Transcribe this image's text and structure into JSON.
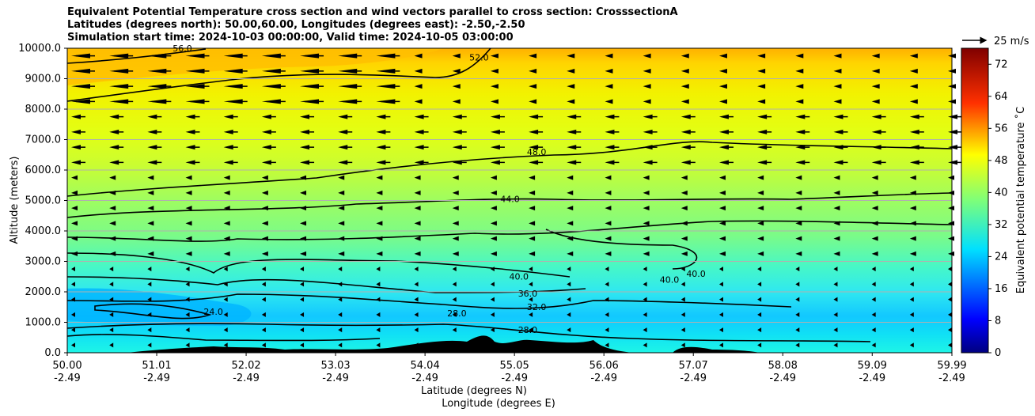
{
  "chart_data": {
    "type": "contourf",
    "title_lines": [
      "Equivalent Potential Temperature cross section and wind vectors parallel to cross section: CrosssectionA",
      "Latitudes (degrees north): 50.00,60.00, Longitudes (degrees east): -2.50,-2.50",
      "Simulation start time: 2024-10-03 00:00:00, Valid time: 2024-10-05 03:00:00"
    ],
    "ylabel": "Altitude (meters)",
    "xlabel_lat": "Latitude (degrees N)",
    "xlabel_lon": "Longitude (degrees E)",
    "xlim": [
      50.0,
      59.99
    ],
    "ylim": [
      0,
      10000
    ],
    "xticks": [
      {
        "lat": "50.00",
        "lon": "-2.49",
        "v": 50.0
      },
      {
        "lat": "51.01",
        "lon": "-2.49",
        "v": 51.01
      },
      {
        "lat": "52.02",
        "lon": "-2.49",
        "v": 52.02
      },
      {
        "lat": "53.03",
        "lon": "-2.49",
        "v": 53.03
      },
      {
        "lat": "54.04",
        "lon": "-2.49",
        "v": 54.04
      },
      {
        "lat": "55.05",
        "lon": "-2.49",
        "v": 55.05
      },
      {
        "lat": "56.06",
        "lon": "-2.49",
        "v": 56.06
      },
      {
        "lat": "57.07",
        "lon": "-2.49",
        "v": 57.07
      },
      {
        "lat": "58.08",
        "lon": "-2.49",
        "v": 58.08
      },
      {
        "lat": "59.09",
        "lon": "-2.49",
        "v": 59.09
      },
      {
        "lat": "59.99",
        "lon": "-2.49",
        "v": 59.99
      }
    ],
    "yticks": [
      "0.0",
      "1000.0",
      "2000.0",
      "3000.0",
      "4000.0",
      "5000.0",
      "6000.0",
      "7000.0",
      "8000.0",
      "9000.0",
      "10000.0"
    ],
    "grid": "horizontal",
    "colorbar": {
      "label": "Equivalent potential temperature $^\\circ$C",
      "label_display": "Equivalent potential temperature ˚C",
      "range": [
        0,
        76
      ],
      "ticks": [
        0,
        8,
        16,
        24,
        32,
        40,
        48,
        56,
        64,
        72
      ]
    },
    "quiver_key": "25 m/s",
    "contour_levels": [
      {
        "label": "24.0",
        "x": 51.65,
        "y": 1250
      },
      {
        "label": "28.0",
        "x": 54.4,
        "y": 1200
      },
      {
        "label": "28.0",
        "x": 55.2,
        "y": 650
      },
      {
        "label": "32.0",
        "x": 55.3,
        "y": 1400
      },
      {
        "label": "36.0",
        "x": 55.2,
        "y": 1850
      },
      {
        "label": "40.0",
        "x": 55.1,
        "y": 2400
      },
      {
        "label": "40.0",
        "x": 56.8,
        "y": 2300
      },
      {
        "label": "40.0",
        "x": 57.1,
        "y": 2500
      },
      {
        "label": "44.0",
        "x": 55.0,
        "y": 4950
      },
      {
        "label": "48.0",
        "x": 55.3,
        "y": 6500
      },
      {
        "label": "52.0",
        "x": 54.65,
        "y": 9600
      },
      {
        "label": "56.0",
        "x": 51.3,
        "y": 9900
      }
    ]
  }
}
